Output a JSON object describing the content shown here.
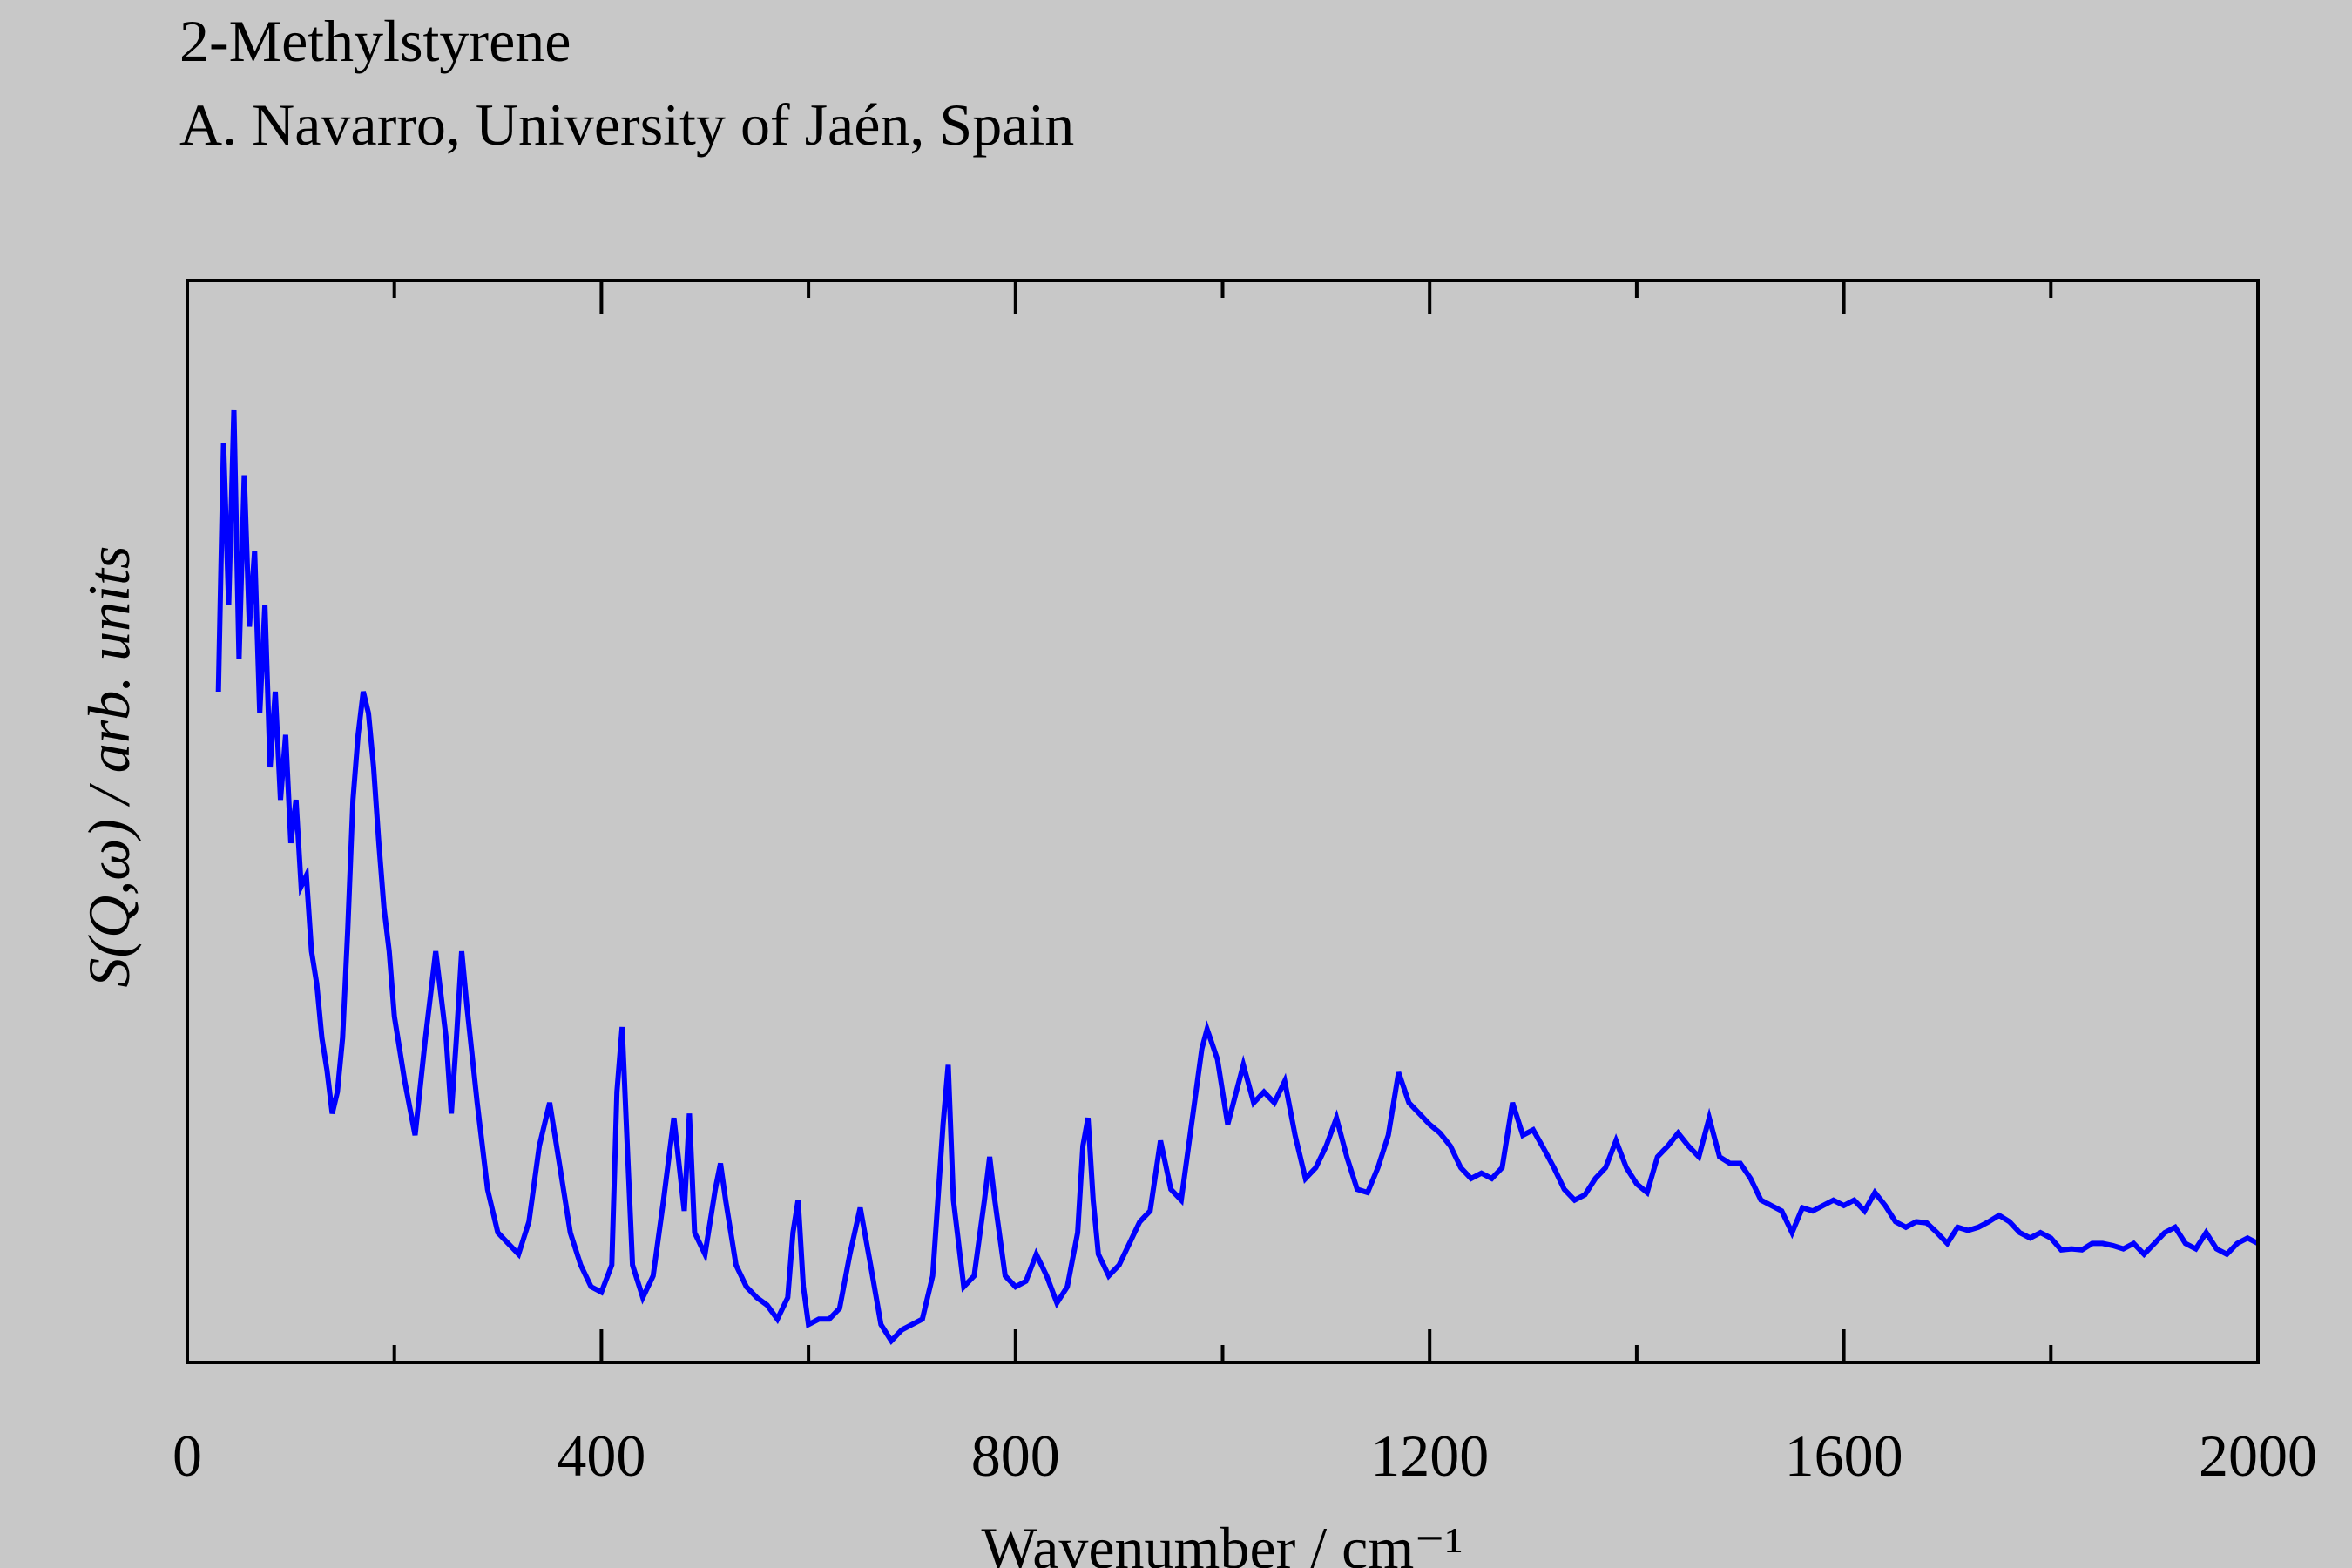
{
  "chart_data": {
    "type": "line",
    "title": "2-Methylstyrene",
    "subtitle": "A. Navarro, University of Jaén, Spain",
    "x_label": "Wavenumber / cm⁻¹",
    "y_label": "S(Q,ω) / arb. units",
    "xlim": [
      0,
      2000
    ],
    "ylim": [
      0,
      100
    ],
    "xticks": [
      0,
      400,
      800,
      1200,
      1600,
      2000
    ],
    "xminor": [
      200,
      600,
      1000,
      1400,
      1800
    ],
    "color": "#0000ff",
    "x": [
      30,
      35,
      40,
      45,
      50,
      55,
      60,
      65,
      70,
      75,
      80,
      85,
      90,
      95,
      100,
      105,
      110,
      115,
      120,
      125,
      130,
      135,
      140,
      145,
      150,
      155,
      160,
      165,
      170,
      175,
      180,
      185,
      190,
      195,
      200,
      210,
      220,
      230,
      240,
      250,
      255,
      260,
      265,
      270,
      280,
      290,
      300,
      310,
      320,
      330,
      340,
      350,
      360,
      370,
      380,
      390,
      400,
      410,
      415,
      420,
      425,
      430,
      440,
      450,
      460,
      470,
      480,
      485,
      490,
      500,
      510,
      515,
      520,
      530,
      540,
      550,
      560,
      570,
      580,
      585,
      590,
      595,
      600,
      610,
      620,
      630,
      640,
      650,
      660,
      670,
      680,
      690,
      700,
      710,
      720,
      730,
      735,
      740,
      750,
      760,
      770,
      775,
      780,
      790,
      800,
      810,
      820,
      830,
      840,
      850,
      860,
      865,
      870,
      875,
      880,
      890,
      900,
      910,
      920,
      930,
      940,
      950,
      960,
      970,
      980,
      985,
      995,
      1005,
      1020,
      1030,
      1040,
      1050,
      1060,
      1070,
      1080,
      1090,
      1100,
      1110,
      1120,
      1130,
      1140,
      1150,
      1160,
      1170,
      1180,
      1190,
      1200,
      1210,
      1220,
      1230,
      1240,
      1250,
      1260,
      1270,
      1280,
      1290,
      1300,
      1310,
      1320,
      1330,
      1340,
      1350,
      1360,
      1370,
      1380,
      1390,
      1400,
      1410,
      1420,
      1430,
      1440,
      1450,
      1460,
      1470,
      1480,
      1490,
      1500,
      1510,
      1520,
      1530,
      1540,
      1550,
      1560,
      1570,
      1580,
      1590,
      1600,
      1610,
      1620,
      1630,
      1640,
      1650,
      1660,
      1670,
      1680,
      1690,
      1700,
      1710,
      1720,
      1730,
      1740,
      1750,
      1760,
      1770,
      1780,
      1790,
      1800,
      1810,
      1820,
      1830,
      1840,
      1850,
      1860,
      1870,
      1880,
      1890,
      1900,
      1910,
      1920,
      1930,
      1940,
      1950,
      1960,
      1970,
      1980,
      1990,
      2000
    ],
    "values": [
      62,
      85,
      70,
      88,
      65,
      82,
      68,
      75,
      60,
      70,
      55,
      62,
      52,
      58,
      48,
      52,
      44,
      45,
      38,
      35,
      30,
      27,
      23,
      25,
      30,
      40,
      52,
      58,
      62,
      60,
      55,
      48,
      42,
      38,
      32,
      26,
      21,
      30,
      38,
      30,
      23,
      30,
      38,
      33,
      24,
      16,
      12,
      11,
      10,
      13,
      20,
      24,
      18,
      12,
      9,
      7,
      6.5,
      9,
      25,
      31,
      20,
      9,
      6,
      8,
      15,
      22.6,
      14,
      23,
      12,
      10,
      16,
      18.4,
      15,
      9,
      7,
      6,
      5.3,
      4,
      6,
      12,
      15,
      7,
      3.5,
      4,
      4,
      5,
      10,
      14.3,
      9,
      3.5,
      2,
      3,
      3.5,
      4,
      8,
      22,
      27.5,
      15,
      7,
      8,
      15,
      19,
      15,
      8,
      7,
      7.5,
      10,
      8,
      5.5,
      7,
      12,
      20,
      22.6,
      15,
      10,
      8,
      9,
      11,
      13,
      14,
      20.5,
      16,
      15,
      22,
      29,
      30.8,
      28,
      22,
      27.5,
      24,
      25,
      24,
      26,
      21,
      17,
      18,
      20,
      22.6,
      19,
      16,
      15.7,
      18,
      21,
      26.8,
      24,
      23,
      22,
      21.2,
      20,
      18,
      17,
      17.5,
      17,
      18,
      24,
      21,
      21.5,
      19.8,
      18,
      16,
      15,
      15.5,
      17,
      18,
      20.5,
      18,
      16.5,
      15.7,
      19,
      20,
      21.2,
      20,
      19,
      22.6,
      19,
      18.4,
      18.4,
      17,
      15,
      14.5,
      14,
      12,
      14.3,
      14,
      14.5,
      15,
      14.5,
      15,
      14,
      15.7,
      14.5,
      13,
      12.5,
      13,
      12.9,
      12,
      11,
      12.5,
      12.2,
      12.5,
      13,
      13.6,
      13,
      12,
      11.5,
      12,
      11.5,
      10.4,
      10.5,
      10.4,
      11,
      11,
      10.8,
      10.5,
      11,
      10,
      11,
      12,
      12.5,
      11,
      10.5,
      12,
      10.5,
      10,
      11,
      11.5,
      11
    ]
  }
}
